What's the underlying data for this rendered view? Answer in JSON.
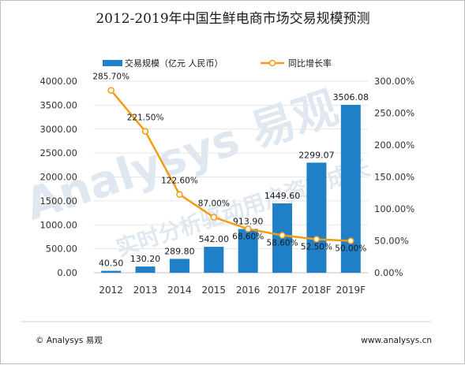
{
  "footer": {
    "left": "© Analysys 易观",
    "right": "www.analysys.cn"
  },
  "watermark": {
    "brand": "Analysys 易观",
    "slogan": "实时分析驱动用户资产成长"
  },
  "colors": {
    "bar": "#1f7fc7",
    "line": "#f39c12",
    "marker_fill": "#ffffff",
    "grid": "#e6e6e6"
  },
  "chart_data": {
    "type": "bar",
    "title": "2012-2019年中国生鲜电商市场交易规模预测",
    "categories": [
      "2012",
      "2013",
      "2014",
      "2015",
      "2016",
      "2017F",
      "2018F",
      "2019F"
    ],
    "series": [
      {
        "name": "交易规模（亿元 人民币）",
        "type": "bar",
        "axis": "left",
        "values": [
          40.5,
          130.2,
          289.8,
          542.0,
          913.9,
          1449.6,
          2299.07,
          3506.08
        ],
        "labels": [
          "40.50",
          "130.20",
          "289.80",
          "542.00",
          "913.90",
          "1449.60",
          "2299.07",
          "3506.08"
        ]
      },
      {
        "name": "同比增长率",
        "type": "line",
        "axis": "right",
        "values": [
          285.7,
          221.5,
          122.6,
          87.0,
          68.6,
          58.6,
          52.5,
          50.0
        ],
        "labels": [
          "285.70%",
          "221.50%",
          "122.60%",
          "87.00%",
          "68.60%",
          "58.60%",
          "52.50%",
          "50.00%"
        ]
      }
    ],
    "y_left": {
      "min": 0,
      "max": 4000,
      "ticks": [
        "0.00",
        "500.00",
        "1000.00",
        "1500.00",
        "2000.00",
        "2500.00",
        "3000.00",
        "3500.00",
        "4000.00"
      ]
    },
    "y_right": {
      "min": 0,
      "max": 300,
      "ticks": [
        "0.00%",
        "50.00%",
        "100.00%",
        "150.00%",
        "200.00%",
        "250.00%",
        "300.00%"
      ]
    },
    "grid": true,
    "legend_position": "top"
  }
}
